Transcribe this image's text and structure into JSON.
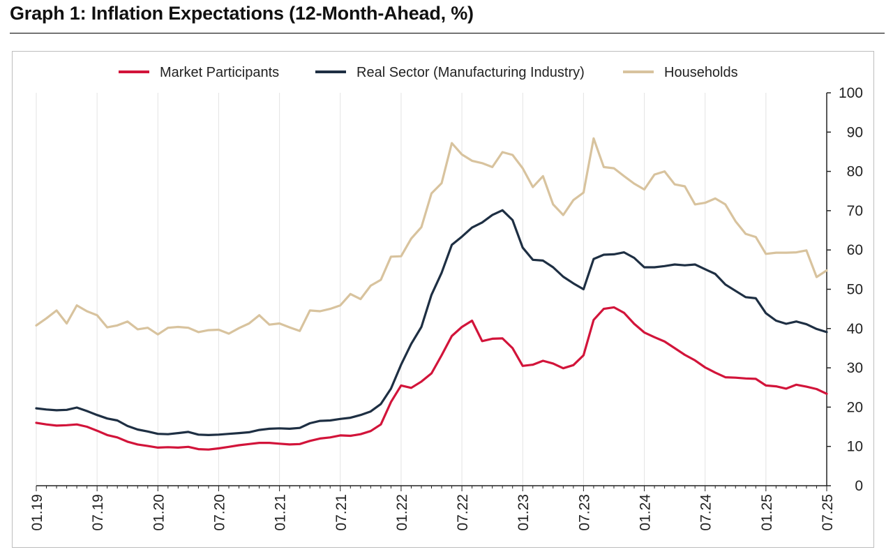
{
  "title": "Graph 1: Inflation Expectations (12-Month-Ahead, %)",
  "chart_data": {
    "type": "line",
    "title": "Graph 1: Inflation Expectations (12-Month-Ahead, %)",
    "xlabel": "",
    "ylabel": "",
    "ylim": [
      0,
      100
    ],
    "yticks": [
      0,
      10,
      20,
      30,
      40,
      50,
      60,
      70,
      80,
      90,
      100
    ],
    "grid": "vertical",
    "legend_position": "top",
    "x_tick_labels": [
      "01.19",
      "07.19",
      "01.20",
      "07.20",
      "01.21",
      "07.21",
      "01.22",
      "07.22",
      "01.23",
      "07.23",
      "01.24",
      "07.24",
      "01.25",
      "07.25"
    ],
    "x_tick_index": [
      0,
      6,
      12,
      18,
      24,
      30,
      36,
      42,
      48,
      54,
      60,
      66,
      72,
      78
    ],
    "x_count": 79,
    "x_start": "01.19",
    "x_end": "07.25",
    "series": [
      {
        "name": "Market Participants",
        "color": "#d2143a",
        "values": [
          16.0,
          15.6,
          15.3,
          15.4,
          15.6,
          15.0,
          14.0,
          12.9,
          12.3,
          11.2,
          10.5,
          10.1,
          9.7,
          9.8,
          9.7,
          9.9,
          9.3,
          9.2,
          9.5,
          9.9,
          10.3,
          10.6,
          10.9,
          10.9,
          10.7,
          10.5,
          10.6,
          11.4,
          12.0,
          12.3,
          12.8,
          12.7,
          13.1,
          13.9,
          15.6,
          21.3,
          25.5,
          24.9,
          26.5,
          28.6,
          33.2,
          38.1,
          40.4,
          42.0,
          36.8,
          37.4,
          37.5,
          35.0,
          30.5,
          30.8,
          31.8,
          31.1,
          29.9,
          30.7,
          33.2,
          42.2,
          45.0,
          45.4,
          44.0,
          41.2,
          39.0,
          37.8,
          36.7,
          35.0,
          33.3,
          31.9,
          30.1,
          28.8,
          27.6,
          27.5,
          27.3,
          27.2,
          25.5,
          25.3,
          24.7,
          25.7,
          25.2,
          24.6,
          23.4
        ]
      },
      {
        "name": "Real Sector (Manufacturing Industry)",
        "color": "#1e2f43",
        "values": [
          19.7,
          19.4,
          19.2,
          19.3,
          19.9,
          19.0,
          18.0,
          17.1,
          16.6,
          15.2,
          14.3,
          13.8,
          13.2,
          13.1,
          13.4,
          13.7,
          13.0,
          12.9,
          13.0,
          13.2,
          13.4,
          13.6,
          14.2,
          14.5,
          14.6,
          14.5,
          14.7,
          15.9,
          16.5,
          16.6,
          17.0,
          17.3,
          18.0,
          18.9,
          20.8,
          24.7,
          30.8,
          36.1,
          40.4,
          48.6,
          54.2,
          61.3,
          63.4,
          65.7,
          67.0,
          68.9,
          70.1,
          67.6,
          60.6,
          57.5,
          57.3,
          55.6,
          53.2,
          51.5,
          50.0,
          57.7,
          58.8,
          58.9,
          59.4,
          58.0,
          55.6,
          55.6,
          55.9,
          56.3,
          56.1,
          56.3,
          55.1,
          53.9,
          51.2,
          49.6,
          48.0,
          47.7,
          43.9,
          42.0,
          41.2,
          41.8,
          41.1,
          39.9,
          39.1
        ]
      },
      {
        "name": "Households",
        "color": "#d8c39e",
        "values": [
          40.8,
          42.6,
          44.6,
          41.3,
          45.9,
          44.4,
          43.4,
          40.3,
          40.8,
          41.8,
          39.8,
          40.2,
          38.5,
          40.2,
          40.4,
          40.2,
          39.1,
          39.6,
          39.7,
          38.7,
          40.1,
          41.3,
          43.4,
          41.0,
          41.3,
          40.3,
          39.4,
          44.6,
          44.4,
          45.0,
          45.9,
          48.8,
          47.5,
          50.9,
          52.4,
          58.3,
          58.4,
          62.9,
          65.8,
          74.4,
          77.0,
          87.2,
          84.3,
          82.7,
          82.1,
          81.1,
          84.9,
          84.2,
          80.8,
          76.0,
          78.8,
          71.6,
          68.9,
          72.7,
          74.6,
          88.4,
          81.1,
          80.8,
          78.8,
          76.9,
          75.4,
          79.2,
          80.0,
          76.7,
          76.2,
          71.6,
          72.0,
          73.1,
          71.6,
          67.3,
          64.1,
          63.3,
          59.0,
          59.3,
          59.3,
          59.4,
          59.9,
          53.1,
          54.8
        ]
      }
    ]
  }
}
